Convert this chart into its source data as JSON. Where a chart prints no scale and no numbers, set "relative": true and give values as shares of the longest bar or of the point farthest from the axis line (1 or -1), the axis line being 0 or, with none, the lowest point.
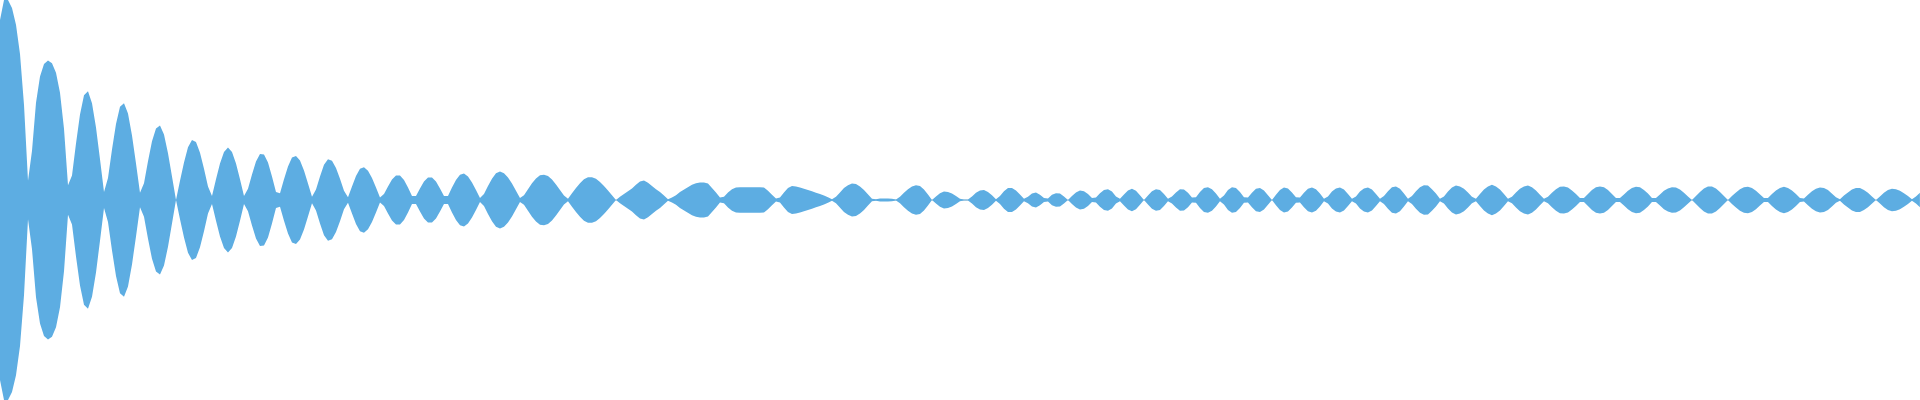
{
  "chart_data": {
    "type": "area",
    "relative": true,
    "categories": [
      null,
      null,
      null,
      null,
      null,
      null,
      null,
      null,
      null,
      null,
      null,
      null,
      null,
      null,
      null,
      null,
      null,
      null,
      null,
      null,
      null,
      null,
      null,
      null,
      null,
      null,
      null,
      null,
      null,
      null,
      null,
      null,
      null,
      null,
      null,
      null,
      null,
      null,
      null,
      null,
      null,
      null,
      null,
      null,
      null,
      null,
      null,
      null,
      null,
      null,
      null,
      null,
      null,
      null,
      null,
      null,
      null,
      null,
      null,
      null,
      null,
      null,
      null,
      null,
      null,
      null,
      null,
      null,
      null,
      null,
      null,
      null,
      null,
      null,
      null,
      null,
      null,
      null,
      null,
      null,
      null,
      null,
      null,
      null,
      null,
      null,
      null,
      null,
      null,
      null,
      null,
      null,
      null,
      null,
      null,
      null,
      null,
      null,
      null,
      null,
      null,
      null,
      null,
      null,
      null,
      null,
      null,
      null,
      null,
      null,
      null,
      null,
      null,
      null,
      null,
      null,
      null,
      null,
      null,
      null,
      null,
      null,
      null,
      null,
      null,
      null,
      null,
      null,
      null,
      null,
      null,
      null,
      null,
      null,
      null,
      null,
      null,
      null,
      null,
      null,
      null,
      null,
      null,
      null,
      null,
      null,
      null,
      null,
      null,
      null,
      null,
      null,
      null,
      null,
      null,
      null,
      null,
      null,
      null,
      null,
      null,
      null,
      null,
      null,
      null,
      null,
      null,
      null,
      null,
      null,
      null,
      null,
      null,
      null,
      null,
      null,
      null,
      null,
      null,
      null,
      null,
      null,
      null,
      null,
      null,
      null,
      null,
      null,
      null,
      null,
      null,
      null,
      null,
      null,
      null,
      null,
      null,
      null,
      null,
      null,
      null,
      null,
      null,
      null,
      null,
      null,
      null,
      null,
      null,
      null,
      null,
      null,
      null,
      null,
      null,
      null,
      null,
      null,
      null,
      null,
      null,
      null,
      null,
      null,
      null,
      null,
      null,
      null,
      null,
      null,
      null,
      null,
      null,
      null,
      null,
      null,
      null,
      null,
      null,
      null,
      null,
      null,
      null,
      null,
      null,
      null,
      null,
      null,
      null,
      null,
      null,
      null,
      null,
      null,
      null,
      null,
      null,
      null,
      null,
      null,
      null,
      null,
      null,
      null,
      null,
      null,
      null,
      null,
      null,
      null,
      null,
      null,
      null,
      null,
      null,
      null,
      null,
      null,
      null,
      null,
      null,
      null,
      null,
      null,
      null,
      null,
      null,
      null,
      null,
      null,
      null,
      null,
      null,
      null,
      null,
      null,
      null,
      null,
      null,
      null,
      null,
      null,
      null,
      null,
      null,
      null,
      null,
      null,
      null,
      null,
      null,
      null,
      null,
      null,
      null,
      null,
      null,
      null,
      null,
      null,
      null,
      null,
      null,
      null,
      null,
      null,
      null,
      null,
      null,
      null,
      null,
      null,
      null,
      null,
      null,
      null,
      null,
      null,
      null,
      null,
      null,
      null,
      null,
      null,
      null,
      null,
      null,
      null,
      null,
      null,
      null,
      null,
      null,
      null,
      null,
      null,
      null,
      null,
      null,
      null,
      null,
      null,
      null,
      null,
      null,
      null,
      null,
      null,
      null,
      null,
      null,
      null,
      null,
      null,
      null,
      null,
      null,
      null,
      null,
      null,
      null,
      null,
      null,
      null,
      null,
      null,
      null,
      null,
      null,
      null,
      null,
      null,
      null,
      null,
      null,
      null,
      null,
      null,
      null,
      null,
      null,
      null,
      null,
      null,
      null,
      null,
      null,
      null,
      null,
      null,
      null,
      null,
      null,
      null,
      null,
      null,
      null,
      null,
      null,
      null,
      null,
      null,
      null,
      null,
      null,
      null,
      null,
      null,
      null,
      null,
      null,
      null,
      null,
      null,
      null,
      null,
      null,
      null,
      null,
      null,
      null,
      null,
      null,
      null,
      null,
      null,
      null,
      null,
      null,
      null,
      null,
      null,
      null,
      null,
      null,
      null,
      null,
      null,
      null,
      null,
      null,
      null,
      null,
      null,
      null,
      null,
      null,
      null,
      null,
      null,
      null,
      null,
      null,
      null,
      null,
      null,
      null,
      null,
      null,
      null,
      null
    ],
    "series": [
      {
        "color": "#5dade2",
        "values": [
          0.9,
          1,
          1,
          0.96,
          0.876,
          0.73,
          0.476,
          0.096,
          0.246,
          0.486,
          0.618,
          0.68,
          0.698,
          0.684,
          0.636,
          0.536,
          0.356,
          0.074,
          0.122,
          0.282,
          0.428,
          0.524,
          0.544,
          0.484,
          0.362,
          0.204,
          0.04,
          0.11,
          0.252,
          0.38,
          0.466,
          0.484,
          0.432,
          0.322,
          0.182,
          0.036,
          0.084,
          0.194,
          0.294,
          0.358,
          0.372,
          0.328,
          0.234,
          0.118,
          0,
          0.096,
          0.188,
          0.264,
          0.3,
          0.29,
          0.236,
          0.156,
          0.068,
          0.02,
          0.104,
          0.182,
          0.24,
          0.262,
          0.24,
          0.182,
          0.104,
          0.02,
          0.056,
          0.128,
          0.192,
          0.23,
          0.228,
          0.188,
          0.118,
          0.04,
          0.034,
          0.104,
          0.168,
          0.212,
          0.22,
          0.198,
          0.148,
          0.082,
          0.016,
          0.052,
          0.118,
          0.176,
          0.204,
          0.196,
          0.16,
          0.106,
          0.046,
          0.014,
          0.068,
          0.12,
          0.156,
          0.164,
          0.146,
          0.11,
          0.062,
          0.012,
          0.03,
          0.068,
          0.102,
          0.122,
          0.122,
          0.1,
          0.062,
          0.02,
          0.02,
          0.058,
          0.092,
          0.112,
          0.112,
          0.092,
          0.058,
          0.02,
          0.02,
          0.062,
          0.1,
          0.126,
          0.132,
          0.118,
          0.088,
          0.05,
          0.01,
          0.03,
          0.07,
          0.106,
          0.134,
          0.142,
          0.134,
          0.112,
          0.082,
          0.046,
          0.01,
          0.024,
          0.054,
          0.084,
          0.108,
          0.124,
          0.126,
          0.12,
          0.102,
          0.078,
          0.05,
          0.022,
          0.006,
          0.034,
          0.06,
          0.084,
          0.104,
          0.114,
          0.114,
          0.106,
          0.09,
          0.07,
          0.048,
          0.024,
          0,
          0.016,
          0.03,
          0.044,
          0.058,
          0.076,
          0.092,
          0.098,
          0.086,
          0.07,
          0.054,
          0.04,
          0.022,
          0.004,
          0.012,
          0.024,
          0.04,
          0.052,
          0.064,
          0.076,
          0.084,
          0.088,
          0.088,
          0.082,
          0.06,
          0.038,
          0.012,
          0.016,
          0.038,
          0.054,
          0.062,
          0.064,
          0.064,
          0.064,
          0.064,
          0.064,
          0.064,
          0.062,
          0.046,
          0.026,
          0.008,
          0.012,
          0.038,
          0.06,
          0.07,
          0.068,
          0.062,
          0.056,
          0.05,
          0.044,
          0.036,
          0.03,
          0.022,
          0.014,
          0.004,
          0.016,
          0.038,
          0.06,
          0.074,
          0.082,
          0.08,
          0.068,
          0.05,
          0.028,
          0.006,
          0.004,
          0.008,
          0.008,
          0.008,
          0.006,
          0.002,
          0.016,
          0.036,
          0.054,
          0.068,
          0.074,
          0.07,
          0.052,
          0.028,
          0,
          0.018,
          0.034,
          0.042,
          0.04,
          0.032,
          0.02,
          0.006,
          0.002,
          0.002,
          0.018,
          0.036,
          0.048,
          0.05,
          0.04,
          0.024,
          0.004,
          0.02,
          0.044,
          0.06,
          0.06,
          0.048,
          0.028,
          0.006,
          0.016,
          0.032,
          0.038,
          0.026,
          0.01,
          0.008,
          0.026,
          0.034,
          0.032,
          0.018,
          0,
          0.02,
          0.038,
          0.048,
          0.044,
          0.03,
          0.01,
          0.012,
          0.034,
          0.05,
          0.054,
          0.042,
          0.018,
          0.006,
          0.028,
          0.048,
          0.056,
          0.046,
          0.024,
          0,
          0.022,
          0.044,
          0.054,
          0.05,
          0.03,
          0.006,
          0.018,
          0.038,
          0.054,
          0.052,
          0.036,
          0.012,
          0.014,
          0.04,
          0.06,
          0.064,
          0.054,
          0.032,
          0.006,
          0.022,
          0.05,
          0.064,
          0.06,
          0.04,
          0.014,
          0.012,
          0.036,
          0.056,
          0.06,
          0.048,
          0.024,
          0,
          0.026,
          0.05,
          0.062,
          0.058,
          0.038,
          0.014,
          0.012,
          0.036,
          0.056,
          0.062,
          0.054,
          0.032,
          0.006,
          0.018,
          0.042,
          0.058,
          0.062,
          0.052,
          0.03,
          0.006,
          0.018,
          0.042,
          0.058,
          0.062,
          0.052,
          0.03,
          0.006,
          0.02,
          0.044,
          0.064,
          0.068,
          0.056,
          0.032,
          0.006,
          0.02,
          0.044,
          0.064,
          0.074,
          0.072,
          0.054,
          0.032,
          0.006,
          0.018,
          0.042,
          0.062,
          0.072,
          0.068,
          0.056,
          0.038,
          0.016,
          0.006,
          0.03,
          0.052,
          0.068,
          0.076,
          0.068,
          0.052,
          0.03,
          0.006,
          0.016,
          0.038,
          0.056,
          0.068,
          0.072,
          0.064,
          0.048,
          0.026,
          0.006,
          0.016,
          0.036,
          0.054,
          0.066,
          0.068,
          0.062,
          0.048,
          0.03,
          0.01,
          0.01,
          0.03,
          0.05,
          0.064,
          0.068,
          0.064,
          0.05,
          0.03,
          0.01,
          0.01,
          0.028,
          0.046,
          0.06,
          0.066,
          0.064,
          0.05,
          0.032,
          0.01,
          0.01,
          0.028,
          0.046,
          0.058,
          0.064,
          0.062,
          0.052,
          0.036,
          0.018,
          0,
          0.02,
          0.04,
          0.058,
          0.068,
          0.068,
          0.058,
          0.04,
          0.02,
          0,
          0.02,
          0.038,
          0.054,
          0.064,
          0.066,
          0.06,
          0.046,
          0.028,
          0.01,
          0.01,
          0.03,
          0.048,
          0.06,
          0.066,
          0.06,
          0.048,
          0.03,
          0.01,
          0.008,
          0.026,
          0.044,
          0.056,
          0.062,
          0.06,
          0.05,
          0.032,
          0.014,
          0.004,
          0.022,
          0.038,
          0.052,
          0.06,
          0.06,
          0.05,
          0.036,
          0.018,
          0,
          0.018,
          0.036,
          0.05,
          0.056,
          0.054,
          0.046,
          0.034,
          0.02,
          0.004,
          0.018,
          0.036
        ]
      },
      {
        "color": "#5dade2",
        "values": [
          -0.9,
          -1,
          -1,
          -0.96,
          -0.876,
          -0.73,
          -0.476,
          -0.096,
          -0.246,
          -0.486,
          -0.618,
          -0.68,
          -0.698,
          -0.684,
          -0.636,
          -0.536,
          -0.356,
          -0.074,
          -0.122,
          -0.282,
          -0.428,
          -0.524,
          -0.544,
          -0.484,
          -0.362,
          -0.204,
          -0.04,
          -0.11,
          -0.252,
          -0.38,
          -0.466,
          -0.484,
          -0.432,
          -0.322,
          -0.182,
          -0.036,
          -0.084,
          -0.194,
          -0.294,
          -0.358,
          -0.372,
          -0.328,
          -0.234,
          -0.118,
          0,
          -0.096,
          -0.188,
          -0.264,
          -0.3,
          -0.29,
          -0.236,
          -0.156,
          -0.068,
          -0.02,
          -0.104,
          -0.182,
          -0.24,
          -0.262,
          -0.24,
          -0.182,
          -0.104,
          -0.02,
          -0.056,
          -0.128,
          -0.192,
          -0.23,
          -0.228,
          -0.188,
          -0.118,
          -0.04,
          -0.034,
          -0.104,
          -0.168,
          -0.212,
          -0.22,
          -0.198,
          -0.148,
          -0.082,
          -0.016,
          -0.052,
          -0.118,
          -0.176,
          -0.204,
          -0.196,
          -0.16,
          -0.106,
          -0.046,
          -0.014,
          -0.068,
          -0.12,
          -0.156,
          -0.164,
          -0.146,
          -0.11,
          -0.062,
          -0.012,
          -0.03,
          -0.068,
          -0.102,
          -0.122,
          -0.122,
          -0.1,
          -0.062,
          -0.02,
          -0.02,
          -0.058,
          -0.092,
          -0.112,
          -0.112,
          -0.092,
          -0.058,
          -0.02,
          -0.02,
          -0.062,
          -0.1,
          -0.126,
          -0.132,
          -0.118,
          -0.088,
          -0.05,
          -0.01,
          -0.03,
          -0.07,
          -0.106,
          -0.134,
          -0.142,
          -0.134,
          -0.112,
          -0.082,
          -0.046,
          -0.01,
          -0.024,
          -0.054,
          -0.084,
          -0.108,
          -0.124,
          -0.126,
          -0.12,
          -0.102,
          -0.078,
          -0.05,
          -0.022,
          -0.006,
          -0.034,
          -0.06,
          -0.084,
          -0.104,
          -0.114,
          -0.114,
          -0.106,
          -0.09,
          -0.07,
          -0.048,
          -0.024,
          0,
          -0.016,
          -0.03,
          -0.044,
          -0.058,
          -0.076,
          -0.092,
          -0.098,
          -0.086,
          -0.07,
          -0.054,
          -0.04,
          -0.022,
          -0.004,
          -0.012,
          -0.024,
          -0.04,
          -0.052,
          -0.064,
          -0.076,
          -0.084,
          -0.088,
          -0.088,
          -0.082,
          -0.06,
          -0.038,
          -0.012,
          -0.016,
          -0.038,
          -0.054,
          -0.062,
          -0.064,
          -0.064,
          -0.064,
          -0.064,
          -0.064,
          -0.064,
          -0.062,
          -0.046,
          -0.026,
          -0.008,
          -0.012,
          -0.038,
          -0.06,
          -0.07,
          -0.068,
          -0.062,
          -0.056,
          -0.05,
          -0.044,
          -0.036,
          -0.03,
          -0.022,
          -0.014,
          -0.004,
          -0.016,
          -0.038,
          -0.06,
          -0.074,
          -0.082,
          -0.08,
          -0.068,
          -0.05,
          -0.028,
          -0.006,
          -0.004,
          -0.008,
          -0.008,
          -0.008,
          -0.006,
          -0.002,
          -0.016,
          -0.036,
          -0.054,
          -0.068,
          -0.074,
          -0.07,
          -0.052,
          -0.028,
          0,
          -0.018,
          -0.034,
          -0.042,
          -0.04,
          -0.032,
          -0.02,
          -0.006,
          -0.002,
          -0.002,
          -0.018,
          -0.036,
          -0.048,
          -0.05,
          -0.04,
          -0.024,
          -0.004,
          -0.02,
          -0.044,
          -0.06,
          -0.06,
          -0.048,
          -0.028,
          -0.006,
          -0.016,
          -0.032,
          -0.038,
          -0.026,
          -0.01,
          -0.008,
          -0.026,
          -0.034,
          -0.032,
          -0.018,
          0,
          -0.02,
          -0.038,
          -0.048,
          -0.044,
          -0.03,
          -0.01,
          -0.012,
          -0.034,
          -0.05,
          -0.054,
          -0.042,
          -0.018,
          -0.006,
          -0.028,
          -0.048,
          -0.056,
          -0.046,
          -0.024,
          0,
          -0.022,
          -0.044,
          -0.054,
          -0.05,
          -0.03,
          -0.006,
          -0.018,
          -0.038,
          -0.054,
          -0.052,
          -0.036,
          -0.012,
          -0.014,
          -0.04,
          -0.06,
          -0.064,
          -0.054,
          -0.032,
          -0.006,
          -0.022,
          -0.05,
          -0.064,
          -0.06,
          -0.04,
          -0.014,
          -0.012,
          -0.036,
          -0.056,
          -0.06,
          -0.048,
          -0.024,
          0,
          -0.026,
          -0.05,
          -0.062,
          -0.058,
          -0.038,
          -0.014,
          -0.012,
          -0.036,
          -0.056,
          -0.062,
          -0.054,
          -0.032,
          -0.006,
          -0.018,
          -0.042,
          -0.058,
          -0.062,
          -0.052,
          -0.03,
          -0.006,
          -0.018,
          -0.042,
          -0.058,
          -0.062,
          -0.052,
          -0.03,
          -0.006,
          -0.02,
          -0.044,
          -0.064,
          -0.068,
          -0.056,
          -0.032,
          -0.006,
          -0.02,
          -0.044,
          -0.064,
          -0.074,
          -0.072,
          -0.054,
          -0.032,
          -0.006,
          -0.018,
          -0.042,
          -0.062,
          -0.072,
          -0.068,
          -0.056,
          -0.038,
          -0.016,
          -0.006,
          -0.03,
          -0.052,
          -0.068,
          -0.076,
          -0.068,
          -0.052,
          -0.03,
          -0.006,
          -0.016,
          -0.038,
          -0.056,
          -0.068,
          -0.072,
          -0.064,
          -0.048,
          -0.026,
          -0.006,
          -0.016,
          -0.036,
          -0.054,
          -0.066,
          -0.068,
          -0.062,
          -0.048,
          -0.03,
          -0.01,
          -0.01,
          -0.03,
          -0.05,
          -0.064,
          -0.068,
          -0.064,
          -0.05,
          -0.03,
          -0.01,
          -0.01,
          -0.028,
          -0.046,
          -0.06,
          -0.066,
          -0.064,
          -0.05,
          -0.032,
          -0.01,
          -0.01,
          -0.028,
          -0.046,
          -0.058,
          -0.064,
          -0.062,
          -0.052,
          -0.036,
          -0.018,
          0,
          -0.02,
          -0.04,
          -0.058,
          -0.068,
          -0.068,
          -0.058,
          -0.04,
          -0.02,
          0,
          -0.02,
          -0.038,
          -0.054,
          -0.064,
          -0.066,
          -0.06,
          -0.046,
          -0.028,
          -0.01,
          -0.01,
          -0.03,
          -0.048,
          -0.06,
          -0.066,
          -0.06,
          -0.048,
          -0.03,
          -0.01,
          -0.008,
          -0.026,
          -0.044,
          -0.056,
          -0.062,
          -0.06,
          -0.05,
          -0.032,
          -0.014,
          -0.004,
          -0.022,
          -0.038,
          -0.052,
          -0.06,
          -0.06,
          -0.05,
          -0.036,
          -0.018,
          0,
          -0.018,
          -0.036,
          -0.05,
          -0.056,
          -0.054,
          -0.046,
          -0.034,
          -0.02,
          -0.004,
          -0.018,
          -0.036
        ]
      }
    ]
  }
}
